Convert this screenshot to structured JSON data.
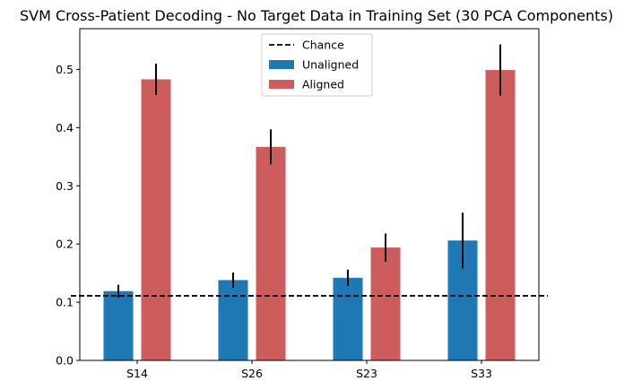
{
  "chart_data": {
    "type": "bar",
    "title": "SVM Cross-Patient Decoding - No Target Data in Training Set (30 PCA Components)",
    "xlabel": "",
    "ylabel": "",
    "categories": [
      "S14",
      "S26",
      "S23",
      "S33"
    ],
    "ylim": [
      0,
      0.57
    ],
    "yticks": [
      0.0,
      0.1,
      0.2,
      0.3,
      0.4,
      0.5
    ],
    "ytick_labels": [
      "0.0",
      "0.1",
      "0.2",
      "0.3",
      "0.4",
      "0.5"
    ],
    "series": [
      {
        "name": "Unaligned",
        "color": "#1f77b4",
        "values": [
          0.119,
          0.138,
          0.142,
          0.206
        ],
        "errors": [
          0.011,
          0.013,
          0.014,
          0.048
        ]
      },
      {
        "name": "Aligned",
        "color": "#cd5c5c",
        "values": [
          0.483,
          0.367,
          0.194,
          0.499
        ],
        "errors": [
          0.027,
          0.03,
          0.024,
          0.044
        ]
      }
    ],
    "reference_line": {
      "name": "Chance",
      "value": 0.111,
      "color": "#000000",
      "style": "dashed"
    },
    "legend": {
      "position": "upper-center",
      "entries": [
        "Chance",
        "Unaligned",
        "Aligned"
      ]
    },
    "grid": false
  }
}
